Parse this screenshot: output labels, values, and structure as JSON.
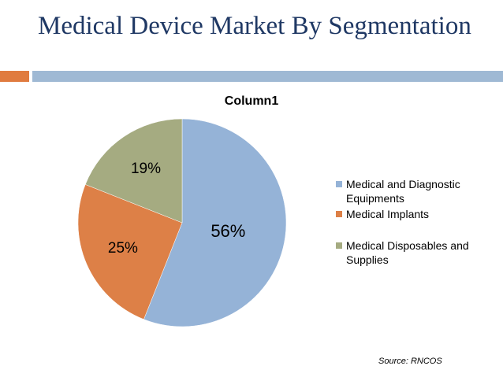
{
  "slide": {
    "title": "Medical Device Market By Segmentation",
    "accent_colors": [
      "#e07b3f",
      "#9fb9d4"
    ],
    "source": "Source: RNCOS"
  },
  "chart_data": {
    "type": "pie",
    "title": "Column1",
    "categories": [
      "Medical and Diagnostic Equipments",
      "Medical Implants",
      "Medical Disposables and Supplies"
    ],
    "values": [
      56,
      25,
      19
    ],
    "labels": [
      "56%",
      "25%",
      "19%"
    ],
    "colors": [
      "#95b3d7",
      "#dd8047",
      "#a5ab81"
    ],
    "legend_position": "right"
  }
}
